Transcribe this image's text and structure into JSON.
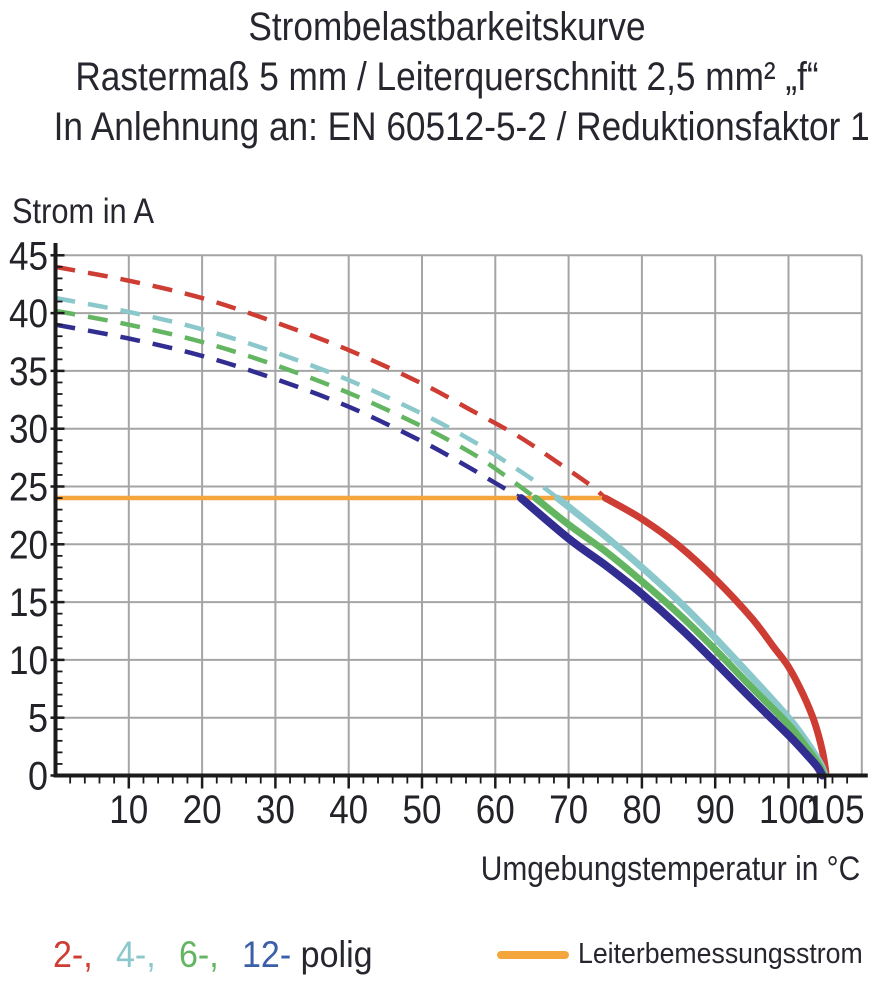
{
  "header": {
    "line1": "Strombelastbarkeitskurve",
    "line2": "Rastermaß 5 mm / Leiterquerschnitt 2,5 mm² „f“",
    "line3": "In Anlehnung an: EN 60512-5-2 / Reduktionsfaktor 1"
  },
  "legend": {
    "pole_items": [
      {
        "label": "2-,",
        "color": "#cd3d33"
      },
      {
        "label": "4-,",
        "color": "#8bc8cb"
      },
      {
        "label": "6-,",
        "color": "#63b561"
      },
      {
        "label": "12-",
        "color": "#3b5fa9"
      },
      {
        "label": "polig",
        "color": "#26262e"
      }
    ],
    "rated": {
      "label": "Leiterbemessungsstrom",
      "color": "#f4a63c"
    }
  },
  "colors": {
    "grid": "#a5a5a5",
    "axis": "#1b1b1b",
    "text": "#222228",
    "orange": "#f4a63c"
  },
  "chart_data": {
    "type": "line",
    "title": "Strombelastbarkeitskurve",
    "xlabel": "Umgebungstemperatur in °C",
    "ylabel": "Strom in A",
    "xlim": [
      0,
      110
    ],
    "ylim": [
      0,
      45
    ],
    "x_ticks": [
      10,
      20,
      30,
      40,
      50,
      60,
      70,
      80,
      90,
      100,
      105
    ],
    "y_ticks": [
      0,
      5,
      10,
      15,
      20,
      25,
      30,
      35,
      40,
      45
    ],
    "x_grid_step": 10,
    "y_grid_step": 5,
    "x_minor_step": 2,
    "y_minor_step": 1,
    "grid": true,
    "legend_position": "bottom",
    "dash_pattern": [
      20,
      13
    ],
    "series": [
      {
        "name": "2-polig",
        "color": "#cd3d33",
        "line_width": 7,
        "dashed": [
          [
            0,
            44
          ],
          [
            10,
            42.8
          ],
          [
            20,
            41.3
          ],
          [
            30,
            39.2
          ],
          [
            40,
            36.8
          ],
          [
            50,
            33.9
          ],
          [
            57,
            31.5
          ],
          [
            63,
            29.4
          ],
          [
            68,
            27.3
          ],
          [
            73,
            25.1
          ],
          [
            75,
            24
          ]
        ],
        "solid": [
          [
            75,
            24
          ],
          [
            80,
            22.2
          ],
          [
            85,
            19.9
          ],
          [
            90,
            17.0
          ],
          [
            95,
            13.6
          ],
          [
            98,
            11.1
          ],
          [
            100,
            9.4
          ],
          [
            102,
            7.0
          ],
          [
            103.5,
            4.7
          ],
          [
            104.6,
            2.2
          ],
          [
            105.1,
            0.3
          ]
        ]
      },
      {
        "name": "4-polig",
        "color": "#8bc8cb",
        "line_width": 7,
        "dashed": [
          [
            0,
            41.3
          ],
          [
            10,
            40.1
          ],
          [
            20,
            38.6
          ],
          [
            30,
            36.6
          ],
          [
            40,
            34.2
          ],
          [
            50,
            31.3
          ],
          [
            57,
            28.9
          ],
          [
            62,
            26.9
          ],
          [
            66,
            25.2
          ],
          [
            68.5,
            24
          ]
        ],
        "solid": [
          [
            68.5,
            24
          ],
          [
            75,
            20.7
          ],
          [
            80,
            18.0
          ],
          [
            85,
            15.1
          ],
          [
            90,
            11.9
          ],
          [
            95,
            8.5
          ],
          [
            100,
            5.0
          ],
          [
            102.5,
            2.9
          ],
          [
            104.3,
            1.1
          ],
          [
            104.9,
            0.2
          ]
        ]
      },
      {
        "name": "6-polig",
        "color": "#63b561",
        "line_width": 7,
        "dashed": [
          [
            0,
            40.2
          ],
          [
            10,
            39.0
          ],
          [
            20,
            37.5
          ],
          [
            30,
            35.5
          ],
          [
            40,
            33.1
          ],
          [
            50,
            30.2
          ],
          [
            57,
            27.8
          ],
          [
            61,
            26.1
          ],
          [
            65.5,
            24
          ]
        ],
        "solid": [
          [
            65.5,
            24
          ],
          [
            70,
            21.7
          ],
          [
            75,
            19.4
          ],
          [
            80,
            16.8
          ],
          [
            85,
            14.0
          ],
          [
            90,
            10.9
          ],
          [
            95,
            7.6
          ],
          [
            100,
            4.4
          ],
          [
            102.5,
            2.4
          ],
          [
            104.2,
            0.9
          ],
          [
            104.8,
            0.1
          ]
        ]
      },
      {
        "name": "12-polig",
        "color": "#312d91",
        "line_width": 8,
        "dashed": [
          [
            0,
            39.0
          ],
          [
            10,
            37.8
          ],
          [
            20,
            36.3
          ],
          [
            30,
            34.3
          ],
          [
            40,
            31.9
          ],
          [
            50,
            28.9
          ],
          [
            56,
            26.8
          ],
          [
            60,
            25.3
          ],
          [
            63.5,
            24
          ]
        ],
        "solid": [
          [
            63.5,
            24
          ],
          [
            70,
            20.5
          ],
          [
            75,
            18.2
          ],
          [
            80,
            15.7
          ],
          [
            85,
            12.9
          ],
          [
            90,
            9.8
          ],
          [
            95,
            6.6
          ],
          [
            100,
            3.5
          ],
          [
            102.5,
            1.8
          ],
          [
            104,
            0.7
          ],
          [
            104.6,
            0
          ]
        ]
      }
    ],
    "rated_current": {
      "name": "Leiterbemessungsstrom",
      "color": "#f4a63c",
      "value": 24,
      "x_start": 0,
      "x_end": 75.2,
      "line_width": 4.5
    }
  }
}
